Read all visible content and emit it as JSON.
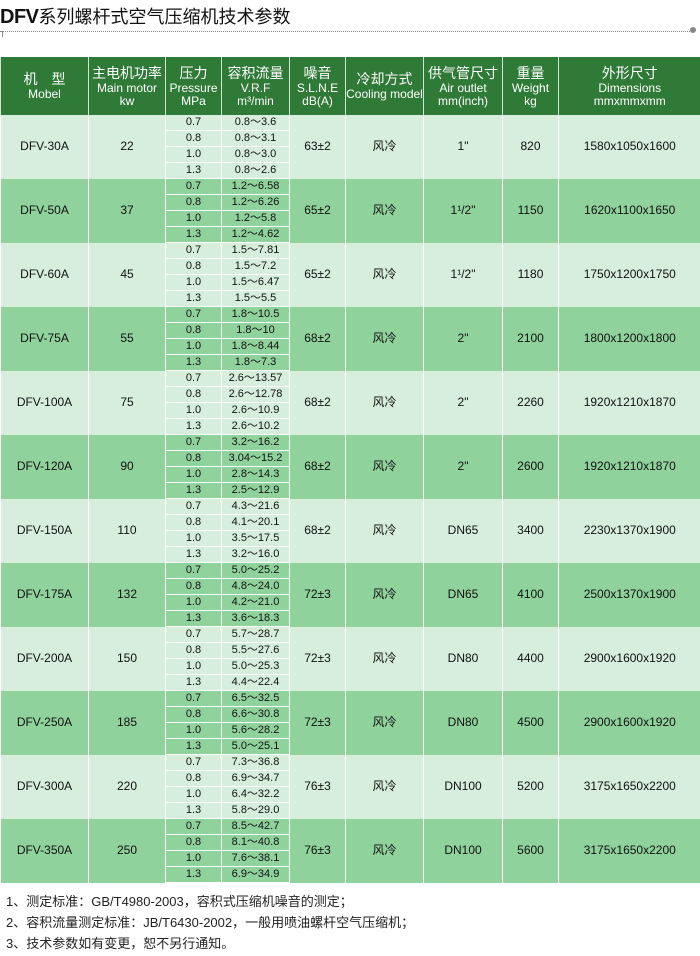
{
  "title": {
    "brand": "DFV",
    "text": "系列螺杆式空气压缩机技术参数"
  },
  "colors": {
    "header": "#2f7a36",
    "row_light": "#d6eedb",
    "row_dark": "#8fd29c"
  },
  "headers": [
    {
      "cn": "机　型",
      "en": [
        "Mobel"
      ]
    },
    {
      "cn": "主电机功率",
      "en": [
        "Main motor",
        "kw"
      ]
    },
    {
      "cn": "压力",
      "en": [
        "Pressure",
        "MPa"
      ]
    },
    {
      "cn": "容积流量",
      "en": [
        "V.R.F",
        "m³/min"
      ]
    },
    {
      "cn": "噪音",
      "en": [
        "S.L.N.E",
        "dB(A)"
      ]
    },
    {
      "cn": "冷却方式",
      "en": [
        "Cooling model"
      ]
    },
    {
      "cn": "供气管尺寸",
      "en": [
        "Air outlet",
        "mm(inch)"
      ]
    },
    {
      "cn": "重量",
      "en": [
        "Weight",
        "kg"
      ]
    },
    {
      "cn": "外形尺寸",
      "en": [
        "Dimensions",
        "mmxmmxmm"
      ]
    }
  ],
  "rows": [
    {
      "model": "DFV-30A",
      "power": "22",
      "pressure": [
        "0.7",
        "0.8",
        "1.0",
        "1.3"
      ],
      "vrf": [
        "0.8～3.6",
        "0.8～3.1",
        "0.8～3.0",
        "0.8～2.6"
      ],
      "noise": "63±2",
      "cooling": "风冷",
      "outlet": "1\"",
      "weight": "820",
      "dims": "1580x1050x1600"
    },
    {
      "model": "DFV-50A",
      "power": "37",
      "pressure": [
        "0.7",
        "0.8",
        "1.0",
        "1.3"
      ],
      "vrf": [
        "1.2～6.58",
        "1.2～6.26",
        "1.2～5.8",
        "1.2～4.62"
      ],
      "noise": "65±2",
      "cooling": "风冷",
      "outlet": "1¹/2\"",
      "weight": "1150",
      "dims": "1620x1100x1650"
    },
    {
      "model": "DFV-60A",
      "power": "45",
      "pressure": [
        "0.7",
        "0.8",
        "1.0",
        "1.3"
      ],
      "vrf": [
        "1.5～7.81",
        "1.5～7.2",
        "1.5～6.47",
        "1.5～5.5"
      ],
      "noise": "65±2",
      "cooling": "风冷",
      "outlet": "1¹/2\"",
      "weight": "1180",
      "dims": "1750x1200x1750"
    },
    {
      "model": "DFV-75A",
      "power": "55",
      "pressure": [
        "0.7",
        "0.8",
        "1.0",
        "1.3"
      ],
      "vrf": [
        "1.8～10.5",
        "1.8～10",
        "1.8～8.44",
        "1.8～7.3"
      ],
      "noise": "68±2",
      "cooling": "风冷",
      "outlet": "2\"",
      "weight": "2100",
      "dims": "1800x1200x1800"
    },
    {
      "model": "DFV-100A",
      "power": "75",
      "pressure": [
        "0.7",
        "0.8",
        "1.0",
        "1.3"
      ],
      "vrf": [
        "2.6～13.57",
        "2.6～12.78",
        "2.6～10.9",
        "2.6～10.2"
      ],
      "noise": "68±2",
      "cooling": "风冷",
      "outlet": "2\"",
      "weight": "2260",
      "dims": "1920x1210x1870"
    },
    {
      "model": "DFV-120A",
      "power": "90",
      "pressure": [
        "0.7",
        "0.8",
        "1.0",
        "1.3"
      ],
      "vrf": [
        "3.2～16.2",
        "3.04～15.2",
        "2.8～14.3",
        "2.5～12.9"
      ],
      "noise": "68±2",
      "cooling": "风冷",
      "outlet": "2\"",
      "weight": "2600",
      "dims": "1920x1210x1870"
    },
    {
      "model": "DFV-150A",
      "power": "110",
      "pressure": [
        "0.7",
        "0.8",
        "1.0",
        "1.3"
      ],
      "vrf": [
        "4.3～21.6",
        "4.1～20.1",
        "3.5～17.5",
        "3.2～16.0"
      ],
      "noise": "68±2",
      "cooling": "风冷",
      "outlet": "DN65",
      "weight": "3400",
      "dims": "2230x1370x1900"
    },
    {
      "model": "DFV-175A",
      "power": "132",
      "pressure": [
        "0.7",
        "0.8",
        "1.0",
        "1.3"
      ],
      "vrf": [
        "5.0～25.2",
        "4.8～24.0",
        "4.2～21.0",
        "3.6～18.3"
      ],
      "noise": "72±3",
      "cooling": "风冷",
      "outlet": "DN65",
      "weight": "4100",
      "dims": "2500x1370x1900"
    },
    {
      "model": "DFV-200A",
      "power": "150",
      "pressure": [
        "0.7",
        "0.8",
        "1.0",
        "1.3"
      ],
      "vrf": [
        "5.7～28.7",
        "5.5～27.6",
        "5.0～25.3",
        "4.4～22.4"
      ],
      "noise": "72±3",
      "cooling": "风冷",
      "outlet": "DN80",
      "weight": "4400",
      "dims": "2900x1600x1920"
    },
    {
      "model": "DFV-250A",
      "power": "185",
      "pressure": [
        "0.7",
        "0.8",
        "1.0",
        "1.3"
      ],
      "vrf": [
        "6.5～32.5",
        "6.6～30.8",
        "5.6～28.2",
        "5.0～25.1"
      ],
      "noise": "72±3",
      "cooling": "风冷",
      "outlet": "DN80",
      "weight": "4500",
      "dims": "2900x1600x1920"
    },
    {
      "model": "DFV-300A",
      "power": "220",
      "pressure": [
        "0.7",
        "0.8",
        "1.0",
        "1.3"
      ],
      "vrf": [
        "7.3～36.8",
        "6.9～34.7",
        "6.4～32.2",
        "5.8～29.0"
      ],
      "noise": "76±3",
      "cooling": "风冷",
      "outlet": "DN100",
      "weight": "5200",
      "dims": "3175x1650x2200"
    },
    {
      "model": "DFV-350A",
      "power": "250",
      "pressure": [
        "0.7",
        "0.8",
        "1.0",
        "1.3"
      ],
      "vrf": [
        "8.5～42.7",
        "8.1～40.8",
        "7.6～38.1",
        "6.9～34.9"
      ],
      "noise": "76±3",
      "cooling": "风冷",
      "outlet": "DN100",
      "weight": "5600",
      "dims": "3175x1650x2200"
    }
  ],
  "notes": [
    "1、测定标准：GB/T4980-2003，容积式压缩机噪音的测定；",
    "2、容积流量测定标准：JB/T6430-2002，一般用喷油螺杆空气压缩机；",
    "3、技术参数如有变更，恕不另行通知。"
  ]
}
